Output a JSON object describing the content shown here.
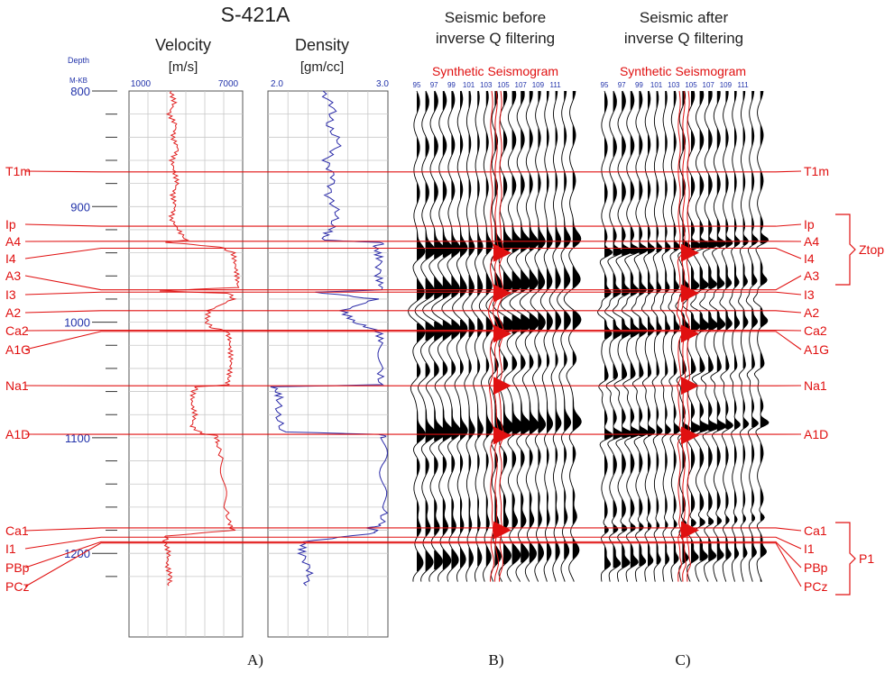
{
  "figure": {
    "well_name": "S-421A",
    "panel_captions": [
      "A)",
      "B)",
      "C)"
    ]
  },
  "depth_axis": {
    "title_line1": "Depth",
    "title_line2": "M-KB",
    "range": [
      800,
      1230
    ],
    "labeled_ticks": [
      800,
      900,
      1000,
      1100,
      1200
    ],
    "minor_tick_step": 20
  },
  "velocity_panel": {
    "title": "Velocity",
    "unit": "[m/s]",
    "axis_min_label": "1000",
    "axis_max_label": "7000",
    "xlim": [
      1000,
      7000
    ],
    "curve_color": "#e02020"
  },
  "density_panel": {
    "title": "Density",
    "unit": "[gm/cc]",
    "axis_min_label": "2.0",
    "axis_max_label": "3.0",
    "xlim": [
      2.0,
      3.0
    ],
    "curve_color": "#2a2aa8"
  },
  "seismic_before": {
    "title_line1": "Seismic before",
    "title_line2": "inverse Q filtering",
    "synthetic_label": "Synthetic Seismogram",
    "trace_labels": [
      "95",
      "97",
      "99",
      "101",
      "103",
      "105",
      "107",
      "109",
      "111"
    ]
  },
  "seismic_after": {
    "title_line1": "Seismic after",
    "title_line2": "inverse Q filtering",
    "synthetic_label": "Synthetic Seismogram",
    "trace_labels": [
      "95",
      "97",
      "99",
      "101",
      "103",
      "105",
      "107",
      "109",
      "111"
    ]
  },
  "horizons": [
    {
      "name": "T1m",
      "depth": 870
    },
    {
      "name": "Ip",
      "depth": 917
    },
    {
      "name": "A4",
      "depth": 930
    },
    {
      "name": "I4",
      "depth": 936
    },
    {
      "name": "A3",
      "depth": 972
    },
    {
      "name": "I3",
      "depth": 974
    },
    {
      "name": "A2",
      "depth": 990
    },
    {
      "name": "Ca2",
      "depth": 1007
    },
    {
      "name": "A1G",
      "depth": 1008
    },
    {
      "name": "Na1",
      "depth": 1055
    },
    {
      "name": "A1D",
      "depth": 1097
    },
    {
      "name": "Ca1",
      "depth": 1178
    },
    {
      "name": "I1",
      "depth": 1186
    },
    {
      "name": "PBp",
      "depth": 1190
    },
    {
      "name": "PCz",
      "depth": 1191
    }
  ],
  "brackets": [
    {
      "label": "Ztop",
      "from_depth": 917,
      "to_depth": 976
    },
    {
      "label": "P1",
      "from_depth": 1177,
      "to_depth": 1227
    }
  ],
  "chart_data": {
    "type": "line",
    "x_axis_role": "depth (m, vertical axis)",
    "series": [
      {
        "name": "Velocity",
        "x": [
          800,
          810,
          820,
          830,
          840,
          850,
          860,
          870,
          880,
          890,
          900,
          910,
          920,
          929,
          931,
          935,
          940,
          950,
          960,
          970,
          973,
          975,
          980,
          990,
          1000,
          1005,
          1008,
          1015,
          1025,
          1035,
          1045,
          1054,
          1056,
          1060,
          1070,
          1080,
          1090,
          1096,
          1098,
          1105,
          1120,
          1140,
          1160,
          1175,
          1180,
          1185,
          1190,
          1200,
          1210,
          1220,
          1228
        ],
        "values": [
          3200,
          3400,
          3100,
          3500,
          3300,
          3600,
          3250,
          3400,
          3550,
          3300,
          3450,
          3200,
          3600,
          4000,
          3000,
          5800,
          6500,
          6600,
          6700,
          6750,
          2500,
          6300,
          6500,
          5200,
          5100,
          5400,
          6200,
          6300,
          6350,
          6400,
          6300,
          6200,
          4600,
          4400,
          4300,
          4500,
          4300,
          4800,
          5600,
          5700,
          5900,
          6000,
          6100,
          6300,
          6500,
          3000,
          2900,
          3100,
          3000,
          3200,
          3100
        ]
      },
      {
        "name": "Density",
        "x": [
          800,
          815,
          830,
          845,
          860,
          875,
          890,
          905,
          920,
          929,
          931,
          935,
          945,
          960,
          972,
          974,
          980,
          990,
          1000,
          1008,
          1020,
          1040,
          1054,
          1056,
          1065,
          1080,
          1095,
          1097,
          1100,
          1120,
          1140,
          1160,
          1175,
          1178,
          1182,
          1190,
          1200,
          1215,
          1228
        ],
        "values": [
          2.45,
          2.55,
          2.5,
          2.6,
          2.48,
          2.55,
          2.5,
          2.58,
          2.52,
          2.45,
          2.95,
          2.9,
          2.93,
          2.92,
          2.95,
          2.4,
          2.9,
          2.62,
          2.72,
          2.92,
          2.95,
          2.94,
          2.93,
          2.05,
          2.1,
          2.08,
          2.12,
          2.95,
          2.96,
          2.97,
          2.95,
          2.98,
          2.94,
          2.85,
          2.92,
          2.3,
          2.28,
          2.35,
          2.32
        ]
      }
    ],
    "horizon_depths": [
      870,
      917,
      930,
      936,
      972,
      974,
      990,
      1007,
      1008,
      1055,
      1097,
      1178,
      1186,
      1190,
      1191
    ]
  }
}
